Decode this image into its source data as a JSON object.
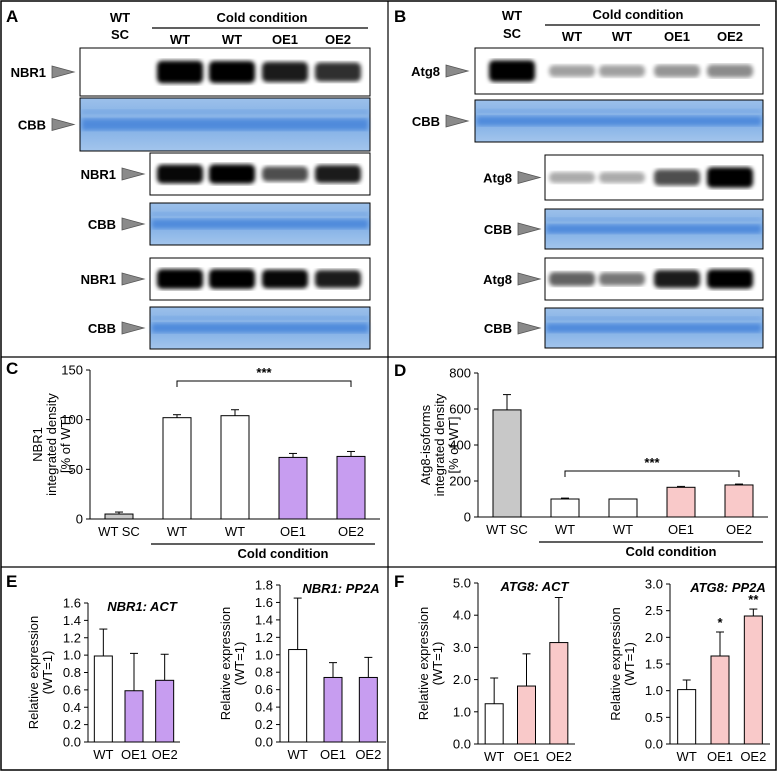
{
  "colors": {
    "gray_bar": "#c8c8c8",
    "purple": "#c79df0",
    "pink": "#f9c9c9",
    "cbb_blue": "#8fb7e6",
    "cbb_band": "#3a7ad6"
  },
  "panels": {
    "A": {
      "letter": "A",
      "header_top": "WT",
      "header_sc": "SC",
      "cold_label": "Cold condition",
      "lanes": [
        "WT",
        "WT",
        "OE1",
        "OE2"
      ],
      "blots": [
        "NBR1",
        "CBB",
        "NBR1",
        "CBB",
        "NBR1",
        "CBB"
      ]
    },
    "B": {
      "letter": "B",
      "header_top": "WT",
      "header_sc": "SC",
      "cold_label": "Cold condition",
      "lanes": [
        "WT",
        "WT",
        "OE1",
        "OE2"
      ],
      "blots": [
        "Atg8",
        "CBB",
        "Atg8",
        "CBB",
        "Atg8",
        "CBB"
      ]
    }
  },
  "chart_data": [
    {
      "panel": "C",
      "type": "bar",
      "ylabel_line1": "NBR1",
      "ylabel_line2": "integrated density",
      "ylabel_line3": "[% of WT]",
      "ylim": [
        0,
        150
      ],
      "yticks": [
        "0",
        "50",
        "100",
        "150"
      ],
      "categories": [
        "WT SC",
        "WT",
        "WT",
        "OE1",
        "OE2"
      ],
      "values": [
        5,
        102,
        104,
        62,
        63
      ],
      "errors": [
        2,
        3,
        6,
        4,
        5
      ],
      "colors": [
        "#c8c8c8",
        "#ffffff",
        "#ffffff",
        "#c79df0",
        "#c79df0"
      ],
      "significance": "***",
      "group_label": "Cold condition"
    },
    {
      "panel": "D",
      "type": "bar",
      "ylabel_line1": "Atg8-isoforms",
      "ylabel_line2": "integrated density",
      "ylabel_line3": "[% of WT]",
      "ylim": [
        0,
        800
      ],
      "yticks": [
        "0",
        "200",
        "400",
        "600",
        "800"
      ],
      "categories": [
        "WT SC",
        "WT",
        "WT",
        "OE1",
        "OE2"
      ],
      "values": [
        595,
        100,
        100,
        165,
        178
      ],
      "errors": [
        85,
        5,
        0,
        5,
        5
      ],
      "colors": [
        "#c8c8c8",
        "#ffffff",
        "#ffffff",
        "#f9c9c9",
        "#f9c9c9"
      ],
      "significance": "***",
      "group_label": "Cold condition"
    },
    {
      "panel": "E",
      "type": "bar",
      "title": "NBR1: ACT",
      "ylabel_line1": "Relative expression",
      "ylabel_line2": "(WT=1)",
      "ylim": [
        0,
        1.6
      ],
      "yticks": [
        "0.0",
        "0.2",
        "0.4",
        "0.6",
        "0.8",
        "1.0",
        "1.2",
        "1.4",
        "1.6"
      ],
      "categories": [
        "WT",
        "OE1",
        "OE2"
      ],
      "values": [
        0.99,
        0.59,
        0.71
      ],
      "errors": [
        0.31,
        0.43,
        0.3
      ],
      "colors": [
        "#ffffff",
        "#c79df0",
        "#c79df0"
      ],
      "marks": [
        "",
        "",
        ""
      ]
    },
    {
      "panel": "E2",
      "type": "bar",
      "title": "NBR1: PP2A",
      "ylabel_line1": "Relative expression",
      "ylabel_line2": "(WT=1)",
      "ylim": [
        0,
        1.8
      ],
      "yticks": [
        "0.0",
        "0.2",
        "0.4",
        "0.6",
        "0.8",
        "1.0",
        "1.2",
        "1.4",
        "1.6",
        "1.8"
      ],
      "categories": [
        "WT",
        "OE1",
        "OE2"
      ],
      "values": [
        1.06,
        0.74,
        0.74
      ],
      "errors": [
        0.59,
        0.17,
        0.23
      ],
      "colors": [
        "#ffffff",
        "#c79df0",
        "#c79df0"
      ],
      "marks": [
        "",
        "",
        ""
      ]
    },
    {
      "panel": "F",
      "type": "bar",
      "title": "ATG8: ACT",
      "ylabel_line1": "Relative expression",
      "ylabel_line2": "(WT=1)",
      "ylim": [
        0,
        5.0
      ],
      "yticks": [
        "0.0",
        "1.0",
        "2.0",
        "3.0",
        "4.0",
        "5.0"
      ],
      "categories": [
        "WT",
        "OE1",
        "OE2"
      ],
      "values": [
        1.25,
        1.8,
        3.15
      ],
      "errors": [
        0.8,
        1.0,
        1.4
      ],
      "colors": [
        "#ffffff",
        "#f9c9c9",
        "#f9c9c9"
      ],
      "marks": [
        "",
        "",
        ""
      ]
    },
    {
      "panel": "F2",
      "type": "bar",
      "title": "ATG8: PP2A",
      "ylabel_line1": "Relative expression",
      "ylabel_line2": "(WT=1)",
      "ylim": [
        0,
        3.0
      ],
      "yticks": [
        "0.0",
        "0.5",
        "1.0",
        "1.5",
        "2.0",
        "2.5",
        "3.0"
      ],
      "categories": [
        "WT",
        "OE1",
        "OE2"
      ],
      "values": [
        1.02,
        1.65,
        2.4
      ],
      "errors": [
        0.18,
        0.45,
        0.13
      ],
      "colors": [
        "#ffffff",
        "#f9c9c9",
        "#f9c9c9"
      ],
      "marks": [
        "",
        "*",
        "**"
      ]
    }
  ],
  "letters": {
    "C": "C",
    "D": "D",
    "E": "E",
    "F": "F"
  }
}
